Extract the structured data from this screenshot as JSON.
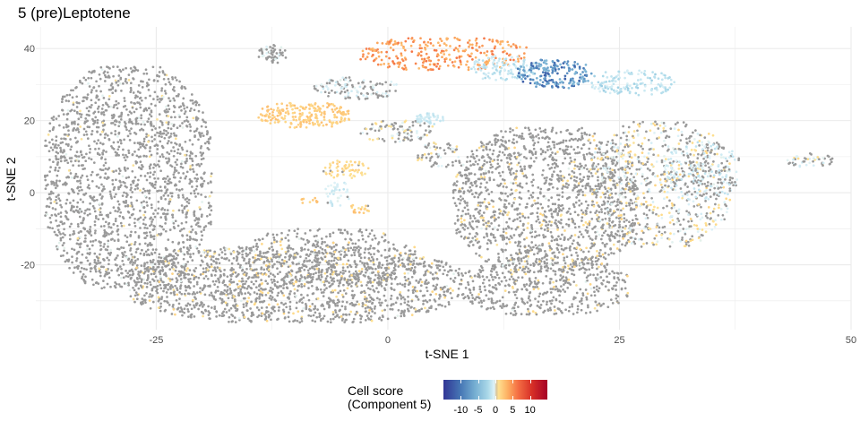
{
  "chart_data": {
    "type": "scatter",
    "title": "5 (pre)Leptotene",
    "xlabel": "t-SNE 1",
    "ylabel": "t-SNE 2",
    "xlim": [
      -38,
      50
    ],
    "ylim": [
      -38,
      46
    ],
    "x_ticks": [
      -25,
      0,
      25,
      50
    ],
    "y_ticks": [
      -20,
      0,
      20,
      40
    ],
    "grid": true,
    "background": "#ffffff",
    "neutral_point_color": "#9a9a9a",
    "color_scale": {
      "title_lines": [
        "Cell score",
        "(Component 5)"
      ],
      "min": -15,
      "max": 15,
      "ticks": [
        -10,
        -5,
        0,
        5,
        10
      ],
      "colors": [
        "#313695",
        "#4575b4",
        "#74add1",
        "#abd9e9",
        "#e0f3f8",
        "#fee090",
        "#fdae61",
        "#f46d43",
        "#d73027",
        "#a50026"
      ]
    },
    "legend_position": "bottom",
    "clusters": [
      {
        "x": [
          -37,
          -19
        ],
        "y": [
          -27,
          35
        ],
        "n": 1900,
        "score": [
          -1.5,
          1.5
        ]
      },
      {
        "x": [
          -28,
          8
        ],
        "y": [
          -36,
          -15
        ],
        "n": 1600,
        "score": [
          -1.5,
          2.5
        ]
      },
      {
        "x": [
          -16,
          3
        ],
        "y": [
          -26,
          -10
        ],
        "n": 400,
        "score": [
          -1.5,
          2.5
        ]
      },
      {
        "x": [
          8,
          26
        ],
        "y": [
          -34,
          -18
        ],
        "n": 500,
        "score": [
          -1.5,
          2.5
        ]
      },
      {
        "x": [
          7,
          27
        ],
        "y": [
          -22,
          18
        ],
        "n": 1500,
        "score": [
          -1.5,
          2.5
        ]
      },
      {
        "x": [
          22,
          37
        ],
        "y": [
          -15,
          20
        ],
        "n": 700,
        "score": [
          -2.5,
          2.5
        ]
      },
      {
        "x": [
          30,
          38
        ],
        "y": [
          -2,
          14
        ],
        "n": 200,
        "score": [
          -4,
          1
        ]
      },
      {
        "x": [
          -14,
          -11
        ],
        "y": [
          36,
          41
        ],
        "n": 60,
        "score": [
          -2,
          1
        ]
      },
      {
        "x": [
          -3,
          15
        ],
        "y": [
          34,
          43
        ],
        "n": 280,
        "score": [
          4,
          8
        ]
      },
      {
        "x": [
          9,
          16
        ],
        "y": [
          31,
          38
        ],
        "n": 110,
        "score": [
          -5,
          -2
        ]
      },
      {
        "x": [
          14,
          22
        ],
        "y": [
          29,
          37
        ],
        "n": 200,
        "score": [
          -13,
          -7
        ]
      },
      {
        "x": [
          22,
          31
        ],
        "y": [
          27,
          34
        ],
        "n": 140,
        "score": [
          -6,
          -2
        ]
      },
      {
        "x": [
          -8,
          1
        ],
        "y": [
          26,
          32
        ],
        "n": 120,
        "score": [
          -3,
          1
        ]
      },
      {
        "x": [
          -14,
          -4
        ],
        "y": [
          18,
          25
        ],
        "n": 220,
        "score": [
          2,
          4
        ]
      },
      {
        "x": [
          -3,
          5
        ],
        "y": [
          14,
          20
        ],
        "n": 100,
        "score": [
          -2,
          2
        ]
      },
      {
        "x": [
          3,
          6
        ],
        "y": [
          19,
          22
        ],
        "n": 50,
        "score": [
          -4,
          -2
        ]
      },
      {
        "x": [
          3,
          8
        ],
        "y": [
          7,
          14
        ],
        "n": 60,
        "score": [
          -2,
          2
        ]
      },
      {
        "x": [
          -7,
          -2
        ],
        "y": [
          4,
          9
        ],
        "n": 60,
        "score": [
          1,
          3
        ]
      },
      {
        "x": [
          -7,
          -4
        ],
        "y": [
          3,
          -4
        ],
        "n": 40,
        "score": [
          -4,
          -1
        ]
      },
      {
        "x": [
          -4,
          -2
        ],
        "y": [
          -6,
          -3
        ],
        "n": 20,
        "score": [
          1,
          4
        ]
      },
      {
        "x": [
          -10,
          -7
        ],
        "y": [
          -3,
          -1
        ],
        "n": 10,
        "score": [
          2,
          4
        ]
      },
      {
        "x": [
          43,
          48
        ],
        "y": [
          7,
          11
        ],
        "n": 50,
        "score": [
          -3,
          2
        ]
      }
    ]
  }
}
